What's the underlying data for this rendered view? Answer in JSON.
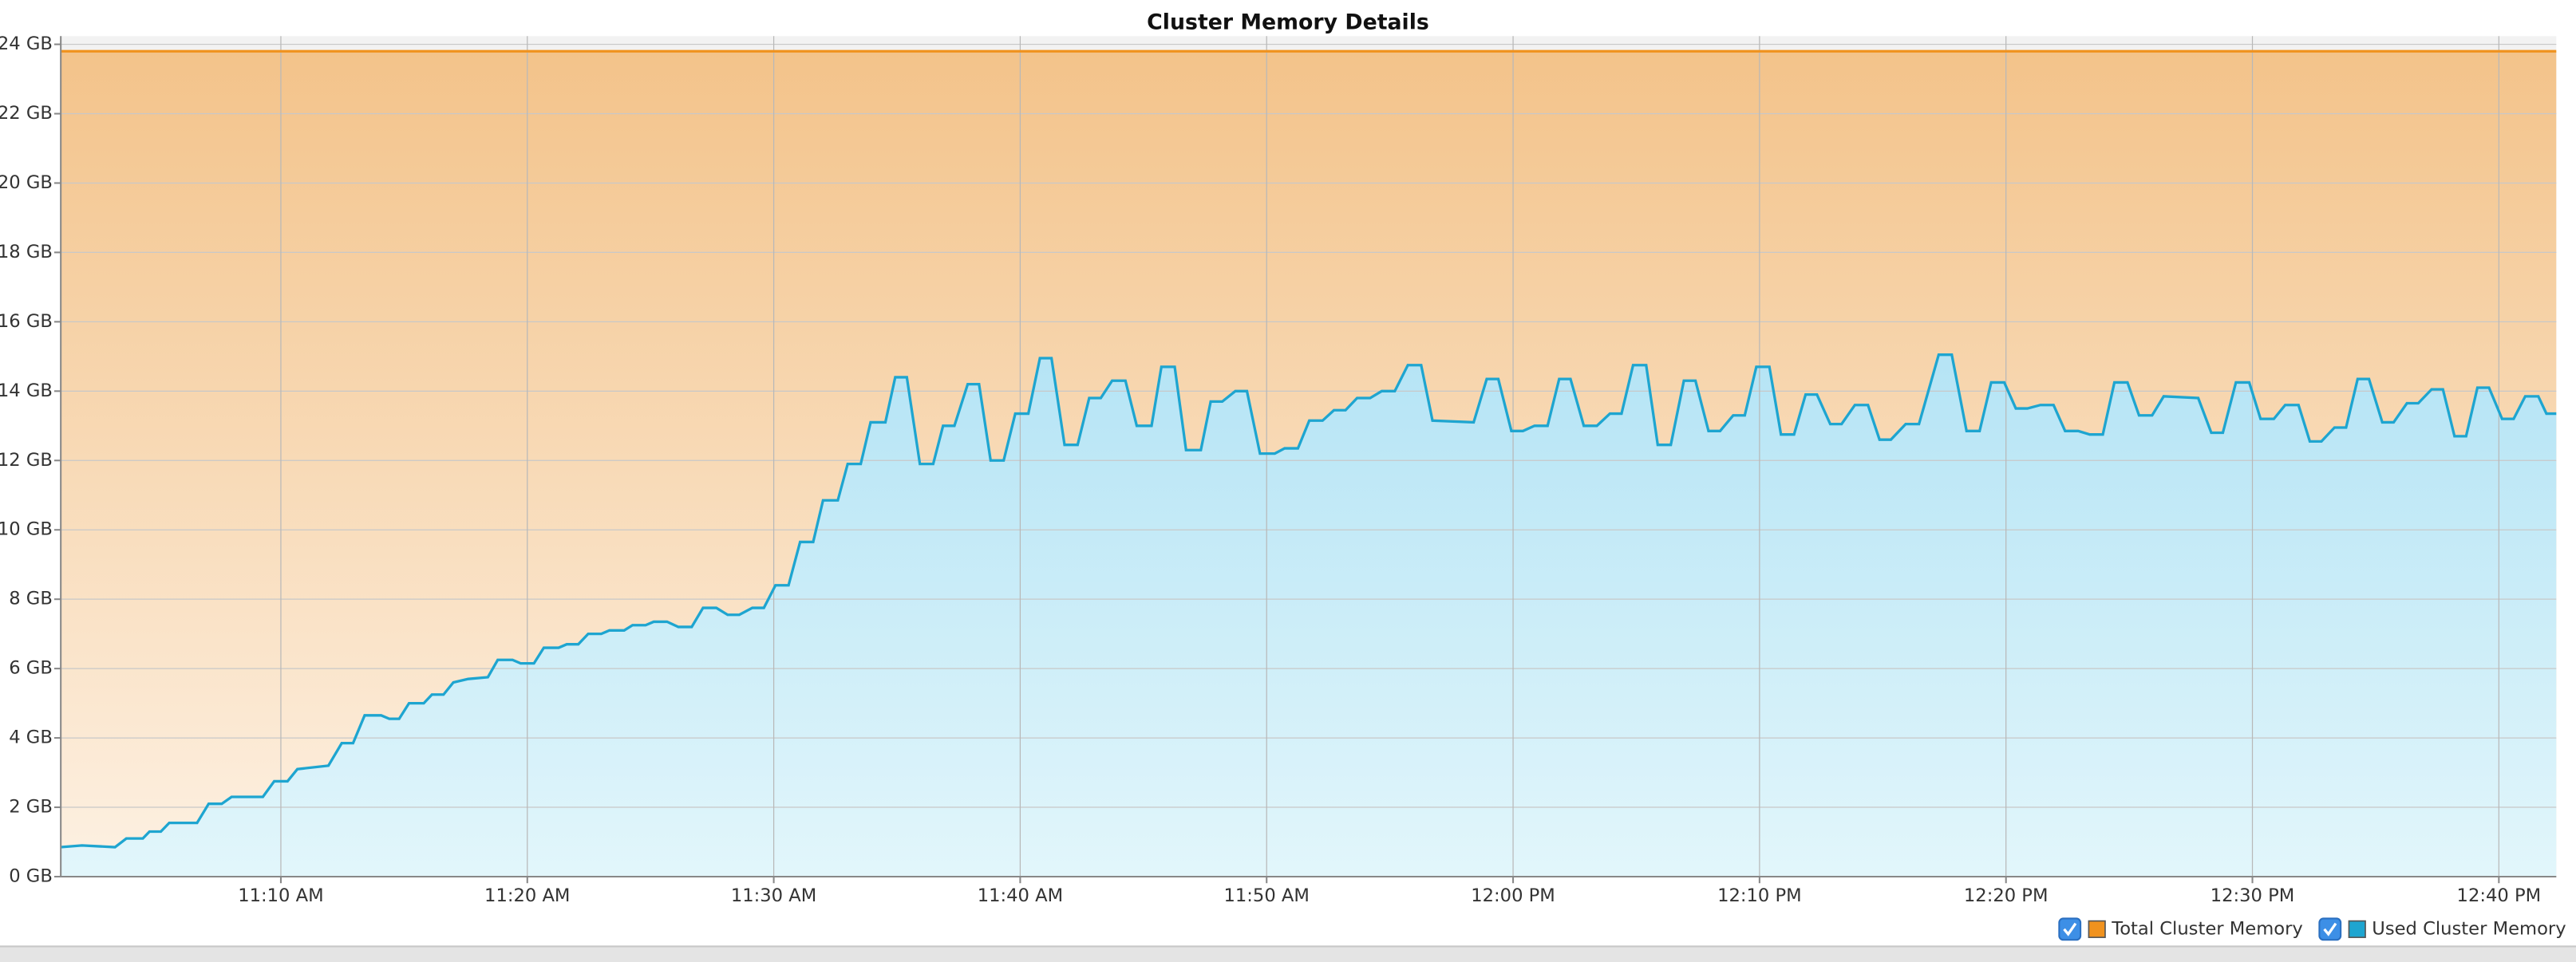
{
  "chart_data": {
    "type": "area",
    "title": "Cluster Memory Details",
    "xlim": [
      661.07,
      762.33
    ],
    "xticks": [
      {
        "value": 670,
        "label": "11:10 AM"
      },
      {
        "value": 680,
        "label": "11:20 AM"
      },
      {
        "value": 690,
        "label": "11:30 AM"
      },
      {
        "value": 700,
        "label": "11:40 AM"
      },
      {
        "value": 710,
        "label": "11:50 AM"
      },
      {
        "value": 720,
        "label": "12:00 PM"
      },
      {
        "value": 730,
        "label": "12:10 PM"
      },
      {
        "value": 740,
        "label": "12:20 PM"
      },
      {
        "value": 750,
        "label": "12:30 PM"
      },
      {
        "value": 760,
        "label": "12:40 PM"
      }
    ],
    "ylim": [
      0,
      24
    ],
    "yticks": [
      {
        "value": 0,
        "label": "0 GB"
      },
      {
        "value": 2,
        "label": "2 GB"
      },
      {
        "value": 4,
        "label": "4 GB"
      },
      {
        "value": 6,
        "label": "6 GB"
      },
      {
        "value": 8,
        "label": "8 GB"
      },
      {
        "value": 10,
        "label": "10 GB"
      },
      {
        "value": 12,
        "label": "12 GB"
      },
      {
        "value": 14,
        "label": "14 GB"
      },
      {
        "value": 16,
        "label": "16 GB"
      },
      {
        "value": 18,
        "label": "18 GB"
      },
      {
        "value": 20,
        "label": "20 GB"
      },
      {
        "value": 22,
        "label": "22 GB"
      },
      {
        "value": 24,
        "label": "24 GB"
      }
    ],
    "grid": true,
    "legend": "bottom-right",
    "series": [
      {
        "name": "Total Cluster Memory",
        "color": "#f0921e",
        "x": [
          661.07,
          762.33
        ],
        "values": [
          23.8,
          23.8
        ]
      },
      {
        "name": "Used Cluster Memory",
        "color": "#1ea5d0",
        "x": [
          661.07,
          661.93,
          663.27,
          663.73,
          664.4,
          664.67,
          665.13,
          665.47,
          666.6,
          667.07,
          667.6,
          668.0,
          669.27,
          669.73,
          670.27,
          670.67,
          671.93,
          672.47,
          672.93,
          673.4,
          674.07,
          674.4,
          674.8,
          675.2,
          675.8,
          676.13,
          676.6,
          677.0,
          677.6,
          678.4,
          678.8,
          679.4,
          679.73,
          680.27,
          680.67,
          681.27,
          681.6,
          682.07,
          682.47,
          683.0,
          683.33,
          683.93,
          684.27,
          684.8,
          685.13,
          685.67,
          686.13,
          686.67,
          687.13,
          687.67,
          688.13,
          688.6,
          689.13,
          689.6,
          690.07,
          690.6,
          691.07,
          691.6,
          692.0,
          692.6,
          693.0,
          693.53,
          693.93,
          694.53,
          694.93,
          695.4,
          695.93,
          696.47,
          696.87,
          697.33,
          697.87,
          698.33,
          698.8,
          699.33,
          699.8,
          700.33,
          700.8,
          701.27,
          701.8,
          702.33,
          702.8,
          703.27,
          703.73,
          704.27,
          704.73,
          705.33,
          705.73,
          706.27,
          706.73,
          707.33,
          707.73,
          708.2,
          708.73,
          709.2,
          709.73,
          710.33,
          710.73,
          711.27,
          711.73,
          712.27,
          712.73,
          713.2,
          713.67,
          714.2,
          714.67,
          715.2,
          715.73,
          716.27,
          716.73,
          718.4,
          718.93,
          719.4,
          719.93,
          720.4,
          720.87,
          721.4,
          721.87,
          722.33,
          722.87,
          723.4,
          723.93,
          724.4,
          724.87,
          725.4,
          725.87,
          726.4,
          726.93,
          727.4,
          727.93,
          728.4,
          728.93,
          729.4,
          729.87,
          730.4,
          730.87,
          731.4,
          731.87,
          732.33,
          732.87,
          733.33,
          733.87,
          734.4,
          734.87,
          735.33,
          735.93,
          736.47,
          737.27,
          737.8,
          738.4,
          738.93,
          739.4,
          739.93,
          740.4,
          740.87,
          741.4,
          741.93,
          742.4,
          742.93,
          743.4,
          743.93,
          744.4,
          744.93,
          745.4,
          745.93,
          746.4,
          747.8,
          748.33,
          748.8,
          749.33,
          749.87,
          750.33,
          750.87,
          751.33,
          751.87,
          752.33,
          752.8,
          753.33,
          753.8,
          754.27,
          754.73,
          755.27,
          755.73,
          756.27,
          756.73,
          757.27,
          757.73,
          758.2,
          758.67,
          759.13,
          759.6,
          760.13,
          760.6,
          761.07,
          761.6,
          761.93,
          762.33
        ],
        "values": [
          0.85,
          0.9,
          0.85,
          1.1,
          1.1,
          1.3,
          1.3,
          1.55,
          1.55,
          2.1,
          2.1,
          2.3,
          2.3,
          2.75,
          2.75,
          3.1,
          3.2,
          3.85,
          3.85,
          4.65,
          4.65,
          4.55,
          4.55,
          5.0,
          5.0,
          5.25,
          5.25,
          5.6,
          5.7,
          5.75,
          6.25,
          6.25,
          6.15,
          6.15,
          6.6,
          6.6,
          6.7,
          6.7,
          7.0,
          7.0,
          7.1,
          7.1,
          7.25,
          7.25,
          7.35,
          7.35,
          7.2,
          7.2,
          7.75,
          7.75,
          7.55,
          7.55,
          7.75,
          7.75,
          8.4,
          8.4,
          9.65,
          9.65,
          10.85,
          10.85,
          11.9,
          11.9,
          13.1,
          13.1,
          14.4,
          14.4,
          11.9,
          11.9,
          13.0,
          13.0,
          14.2,
          14.2,
          12.0,
          12.0,
          13.35,
          13.35,
          14.95,
          14.95,
          12.45,
          12.45,
          13.8,
          13.8,
          14.3,
          14.3,
          13.0,
          13.0,
          14.7,
          14.7,
          12.3,
          12.3,
          13.7,
          13.7,
          14.0,
          14.0,
          12.2,
          12.2,
          12.35,
          12.35,
          13.15,
          13.15,
          13.45,
          13.45,
          13.8,
          13.8,
          14.0,
          14.0,
          14.75,
          14.75,
          13.15,
          13.1,
          14.35,
          14.35,
          12.85,
          12.85,
          13.0,
          13.0,
          14.35,
          14.35,
          13.0,
          13.0,
          13.35,
          13.35,
          14.75,
          14.75,
          12.45,
          12.45,
          14.3,
          14.3,
          12.85,
          12.85,
          13.3,
          13.3,
          14.7,
          14.7,
          12.75,
          12.75,
          13.9,
          13.9,
          13.05,
          13.05,
          13.6,
          13.6,
          12.6,
          12.6,
          13.05,
          13.05,
          15.05,
          15.05,
          12.85,
          12.85,
          14.25,
          14.25,
          13.5,
          13.5,
          13.6,
          13.6,
          12.85,
          12.85,
          12.75,
          12.75,
          14.25,
          14.25,
          13.3,
          13.3,
          13.85,
          13.8,
          12.8,
          12.8,
          14.25,
          14.25,
          13.2,
          13.2,
          13.6,
          13.6,
          12.55,
          12.55,
          12.95,
          12.95,
          14.35,
          14.35,
          13.1,
          13.1,
          13.65,
          13.65,
          14.05,
          14.05,
          12.7,
          12.7,
          14.1,
          14.1,
          13.2,
          13.2,
          13.85,
          13.85,
          13.35,
          13.35
        ]
      }
    ]
  }
}
